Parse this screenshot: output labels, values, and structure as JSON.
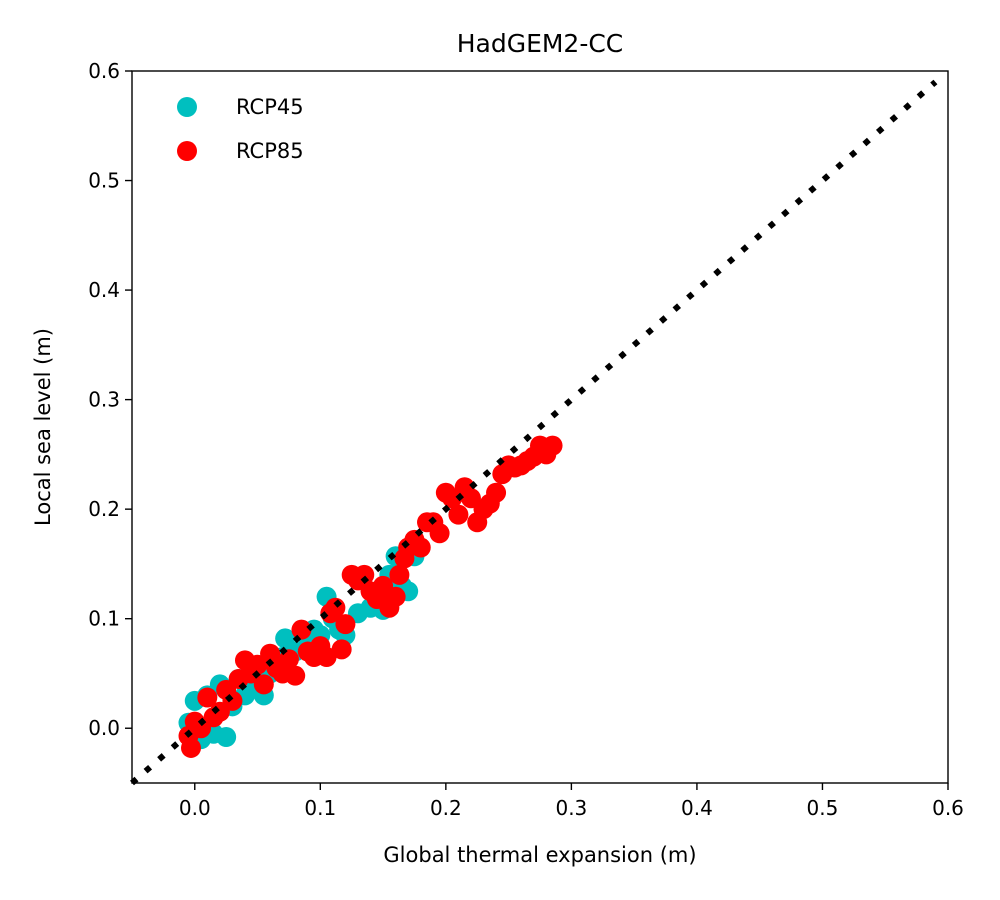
{
  "chart_data": {
    "type": "scatter",
    "title": "HadGEM2-CC",
    "xlabel": "Global thermal expansion (m)",
    "ylabel": "Local sea level (m)",
    "xlim": [
      -0.05,
      0.6
    ],
    "ylim": [
      -0.05,
      0.6
    ],
    "xticks": [
      "0.0",
      "0.1",
      "0.2",
      "0.3",
      "0.4",
      "0.5",
      "0.6"
    ],
    "yticks": [
      "0.0",
      "0.1",
      "0.2",
      "0.3",
      "0.4",
      "0.5",
      "0.6"
    ],
    "legend_position": "top-left",
    "reference_line": {
      "style": "dotted",
      "color": "#000000",
      "from": [
        -0.05,
        -0.05
      ],
      "to": [
        0.59,
        0.59
      ]
    },
    "series": [
      {
        "name": "RCP45",
        "color": "#00BFBF",
        "points": [
          [
            -0.005,
            0.005
          ],
          [
            0.0,
            0.025
          ],
          [
            0.005,
            -0.01
          ],
          [
            0.01,
            0.03
          ],
          [
            0.015,
            -0.005
          ],
          [
            0.02,
            0.04
          ],
          [
            0.025,
            -0.008
          ],
          [
            0.03,
            0.02
          ],
          [
            0.035,
            0.045
          ],
          [
            0.04,
            0.03
          ],
          [
            0.045,
            0.04
          ],
          [
            0.05,
            0.055
          ],
          [
            0.055,
            0.03
          ],
          [
            0.06,
            0.05
          ],
          [
            0.065,
            0.06
          ],
          [
            0.07,
            0.065
          ],
          [
            0.072,
            0.082
          ],
          [
            0.08,
            0.07
          ],
          [
            0.09,
            0.075
          ],
          [
            0.095,
            0.09
          ],
          [
            0.1,
            0.085
          ],
          [
            0.105,
            0.12
          ],
          [
            0.11,
            0.1
          ],
          [
            0.115,
            0.09
          ],
          [
            0.12,
            0.085
          ],
          [
            0.13,
            0.105
          ],
          [
            0.14,
            0.11
          ],
          [
            0.145,
            0.12
          ],
          [
            0.15,
            0.108
          ],
          [
            0.155,
            0.14
          ],
          [
            0.16,
            0.157
          ],
          [
            0.165,
            0.13
          ],
          [
            0.17,
            0.125
          ],
          [
            0.175,
            0.157
          ]
        ]
      },
      {
        "name": "RCP85",
        "color": "#FF0000",
        "points": [
          [
            -0.005,
            -0.007
          ],
          [
            -0.003,
            -0.018
          ],
          [
            0.0,
            0.006
          ],
          [
            0.005,
            0.0
          ],
          [
            0.01,
            0.028
          ],
          [
            0.015,
            0.01
          ],
          [
            0.02,
            0.015
          ],
          [
            0.025,
            0.035
          ],
          [
            0.03,
            0.025
          ],
          [
            0.035,
            0.045
          ],
          [
            0.04,
            0.062
          ],
          [
            0.045,
            0.05
          ],
          [
            0.05,
            0.058
          ],
          [
            0.055,
            0.04
          ],
          [
            0.06,
            0.068
          ],
          [
            0.065,
            0.055
          ],
          [
            0.07,
            0.05
          ],
          [
            0.075,
            0.063
          ],
          [
            0.08,
            0.048
          ],
          [
            0.085,
            0.09
          ],
          [
            0.09,
            0.07
          ],
          [
            0.095,
            0.065
          ],
          [
            0.1,
            0.075
          ],
          [
            0.105,
            0.065
          ],
          [
            0.108,
            0.105
          ],
          [
            0.112,
            0.11
          ],
          [
            0.117,
            0.072
          ],
          [
            0.12,
            0.095
          ],
          [
            0.125,
            0.14
          ],
          [
            0.13,
            0.135
          ],
          [
            0.135,
            0.14
          ],
          [
            0.14,
            0.125
          ],
          [
            0.145,
            0.118
          ],
          [
            0.15,
            0.13
          ],
          [
            0.155,
            0.11
          ],
          [
            0.16,
            0.12
          ],
          [
            0.163,
            0.14
          ],
          [
            0.167,
            0.155
          ],
          [
            0.17,
            0.165
          ],
          [
            0.175,
            0.172
          ],
          [
            0.18,
            0.165
          ],
          [
            0.185,
            0.188
          ],
          [
            0.19,
            0.188
          ],
          [
            0.195,
            0.178
          ],
          [
            0.2,
            0.215
          ],
          [
            0.205,
            0.21
          ],
          [
            0.21,
            0.195
          ],
          [
            0.215,
            0.22
          ],
          [
            0.22,
            0.21
          ],
          [
            0.225,
            0.188
          ],
          [
            0.23,
            0.2
          ],
          [
            0.235,
            0.205
          ],
          [
            0.24,
            0.215
          ],
          [
            0.245,
            0.232
          ],
          [
            0.25,
            0.24
          ],
          [
            0.255,
            0.238
          ],
          [
            0.26,
            0.24
          ],
          [
            0.265,
            0.244
          ],
          [
            0.27,
            0.248
          ],
          [
            0.275,
            0.258
          ],
          [
            0.28,
            0.25
          ],
          [
            0.285,
            0.258
          ]
        ]
      }
    ]
  }
}
